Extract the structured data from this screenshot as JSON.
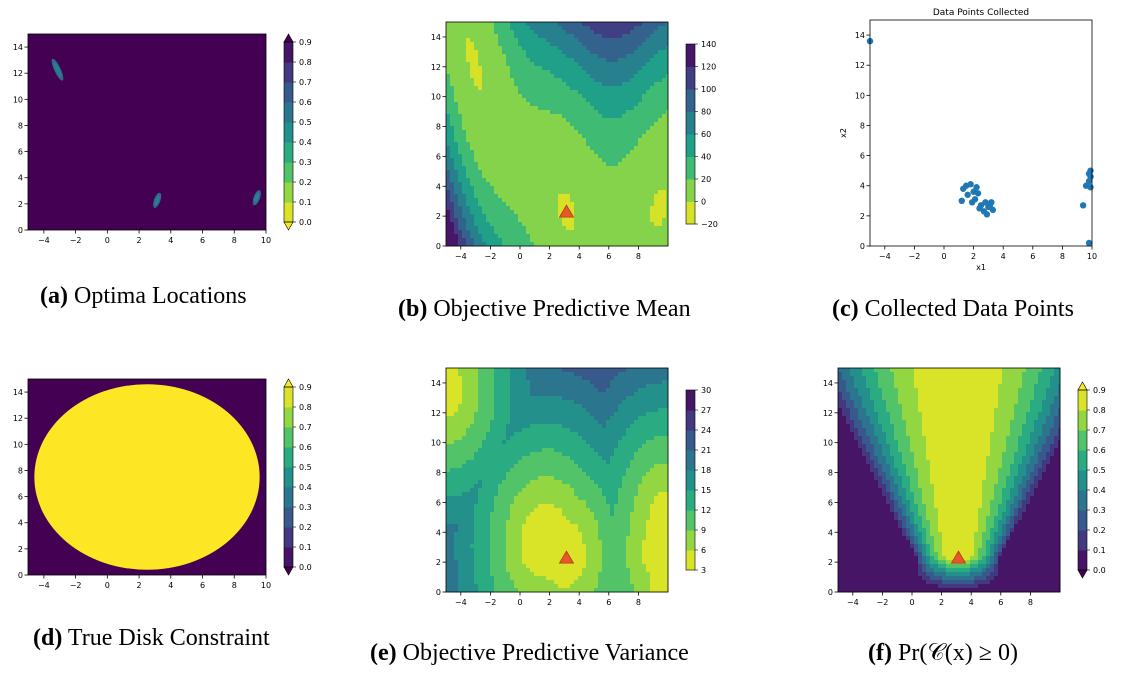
{
  "colors": {
    "viridis": [
      "#440154",
      "#482878",
      "#3e4989",
      "#31688e",
      "#26828e",
      "#1f9e89",
      "#35b779",
      "#6ece58",
      "#b5de2b",
      "#fde725"
    ],
    "marker_triangle": "#e8562a",
    "scatter_blue": "#1f77b4"
  },
  "captions": [
    {
      "letter": "(a)",
      "text": " Optima Locations"
    },
    {
      "letter": "(b)",
      "text": " Objective Predictive Mean"
    },
    {
      "letter": "(c)",
      "text": " Collected Data Points"
    },
    {
      "letter": "(d)",
      "text": " True Disk Constraint"
    },
    {
      "letter": "(e)",
      "text": " Objective Predictive Variance"
    },
    {
      "letter": "(f)",
      "text": " Pr(𝒞(x) ≥ 0)"
    }
  ],
  "chart_data": [
    {
      "id": "a",
      "type": "heatmap",
      "title": "",
      "xlabel": "",
      "ylabel": "",
      "xlim": [
        -5,
        10
      ],
      "ylim": [
        0,
        15
      ],
      "xticks": [
        -4,
        -2,
        0,
        2,
        4,
        6,
        8,
        10
      ],
      "yticks": [
        0,
        2,
        4,
        6,
        8,
        10,
        12,
        14
      ],
      "colorbar_ticks": [
        "0.0",
        "0.1",
        "0.2",
        "0.3",
        "0.4",
        "0.5",
        "0.6",
        "0.7",
        "0.8",
        "0.9"
      ],
      "colormap": "viridis_r",
      "background_value": 0.9,
      "optima": [
        {
          "x": -3.14,
          "y": 12.27
        },
        {
          "x": 3.14,
          "y": 2.27
        },
        {
          "x": 9.42,
          "y": 2.47
        }
      ]
    },
    {
      "id": "b",
      "type": "heatmap",
      "title": "",
      "xlabel": "",
      "ylabel": "",
      "xlim": [
        -5,
        10
      ],
      "ylim": [
        0,
        15
      ],
      "xticks": [
        -4,
        -2,
        0,
        2,
        4,
        6,
        8
      ],
      "yticks": [
        0,
        2,
        4,
        6,
        8,
        10,
        12,
        14
      ],
      "colorbar_ticks": [
        "−20",
        "0",
        "20",
        "40",
        "60",
        "80",
        "100",
        "120",
        "140"
      ],
      "colormap": "viridis_r",
      "marker": {
        "x": 3.14,
        "y": 2.3
      }
    },
    {
      "id": "c",
      "type": "scatter",
      "title": "Data Points Collected",
      "xlabel": "x1",
      "ylabel": "x2",
      "xlim": [
        -5,
        10
      ],
      "ylim": [
        0,
        15
      ],
      "xticks": [
        -4,
        -2,
        0,
        2,
        4,
        6,
        8,
        10
      ],
      "yticks": [
        0,
        2,
        4,
        6,
        8,
        10,
        12,
        14
      ],
      "points": [
        [
          -5,
          13.6
        ],
        [
          1.5,
          4.0
        ],
        [
          1.8,
          4.1
        ],
        [
          2.2,
          3.9
        ],
        [
          1.3,
          3.8
        ],
        [
          2.0,
          3.6
        ],
        [
          1.6,
          3.4
        ],
        [
          2.3,
          3.5
        ],
        [
          1.2,
          3.0
        ],
        [
          2.1,
          3.1
        ],
        [
          1.9,
          2.9
        ],
        [
          2.5,
          2.7
        ],
        [
          2.8,
          2.9
        ],
        [
          3.2,
          2.9
        ],
        [
          3.0,
          2.6
        ],
        [
          2.7,
          2.3
        ],
        [
          3.3,
          2.4
        ],
        [
          2.9,
          2.1
        ],
        [
          3.1,
          2.7
        ],
        [
          2.4,
          2.5
        ],
        [
          9.9,
          5.0
        ],
        [
          9.8,
          4.8
        ],
        [
          9.9,
          4.6
        ],
        [
          9.8,
          4.3
        ],
        [
          9.6,
          4.0
        ],
        [
          9.9,
          3.9
        ],
        [
          9.4,
          2.7
        ],
        [
          9.8,
          0.2
        ]
      ]
    },
    {
      "id": "d",
      "type": "heatmap",
      "title": "",
      "xlabel": "",
      "ylabel": "",
      "xlim": [
        -5,
        10
      ],
      "ylim": [
        0,
        15
      ],
      "xticks": [
        -4,
        -2,
        0,
        2,
        4,
        6,
        8,
        10
      ],
      "yticks": [
        0,
        2,
        4,
        6,
        8,
        10,
        12,
        14
      ],
      "colorbar_ticks": [
        "0.0",
        "0.1",
        "0.2",
        "0.3",
        "0.4",
        "0.5",
        "0.6",
        "0.7",
        "0.8",
        "0.9"
      ],
      "colormap": "viridis",
      "disk": {
        "cx": 2.5,
        "cy": 7.5,
        "r": 7.1
      }
    },
    {
      "id": "e",
      "type": "heatmap",
      "title": "",
      "xlabel": "",
      "ylabel": "",
      "xlim": [
        -5,
        10
      ],
      "ylim": [
        0,
        15
      ],
      "xticks": [
        -4,
        -2,
        0,
        2,
        4,
        6,
        8
      ],
      "yticks": [
        0,
        2,
        4,
        6,
        8,
        10,
        12,
        14
      ],
      "colorbar_ticks": [
        "3",
        "6",
        "9",
        "12",
        "15",
        "18",
        "21",
        "24",
        "27",
        "30"
      ],
      "colormap": "viridis_r",
      "marker": {
        "x": 3.14,
        "y": 2.3
      }
    },
    {
      "id": "f",
      "type": "heatmap",
      "title": "",
      "xlabel": "",
      "ylabel": "",
      "xlim": [
        -5,
        10
      ],
      "ylim": [
        0,
        15
      ],
      "xticks": [
        -4,
        -2,
        0,
        2,
        4,
        6,
        8
      ],
      "yticks": [
        0,
        2,
        4,
        6,
        8,
        10,
        12,
        14
      ],
      "colorbar_ticks": [
        "0.0",
        "0.1",
        "0.2",
        "0.3",
        "0.4",
        "0.5",
        "0.6",
        "0.7",
        "0.8",
        "0.9"
      ],
      "colormap": "viridis",
      "marker": {
        "x": 3.14,
        "y": 2.3
      }
    }
  ]
}
